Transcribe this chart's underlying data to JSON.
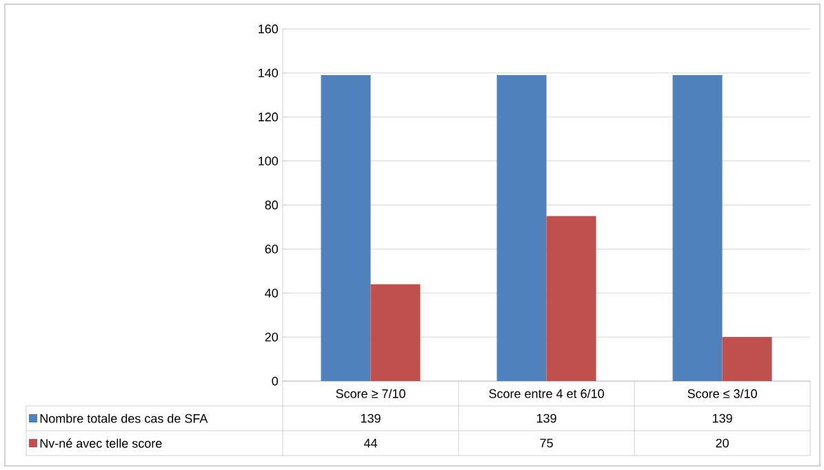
{
  "chart_data": {
    "type": "bar",
    "categories": [
      "Score ≥ 7/10",
      "Score entre 4 et 6/10",
      "Score ≤ 3/10"
    ],
    "series": [
      {
        "name": "Nombre totale des cas de SFA",
        "color": "#4f81bd",
        "values": [
          139,
          139,
          139
        ]
      },
      {
        "name": "Nv-né avec telle score",
        "color": "#c0504d",
        "values": [
          44,
          75,
          20
        ]
      }
    ],
    "ylim": [
      0,
      160
    ],
    "yticks": [
      0,
      20,
      40,
      60,
      80,
      100,
      120,
      140,
      160
    ],
    "grid": "y",
    "legend": "bottom left",
    "data_labels": true
  }
}
